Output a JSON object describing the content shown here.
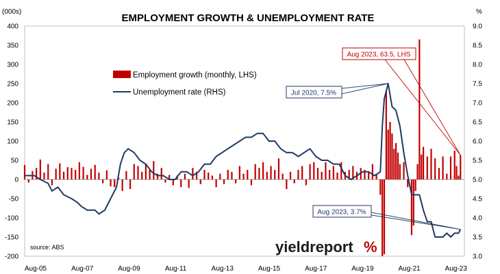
{
  "chart_data": {
    "type": "bar+line",
    "title": "EMPLOYMENT GROWTH & UNEMPLOYMENT RATE",
    "y_left_label": "(000s)",
    "y_right_label": "%",
    "y_left_range": [
      -200,
      400
    ],
    "y_right_range": [
      3.0,
      9.0
    ],
    "y_left_ticks": [
      "400",
      "350",
      "300",
      "250",
      "200",
      "150",
      "100",
      "50",
      "0",
      "-50",
      "-100",
      "-150",
      "-200"
    ],
    "y_right_ticks": [
      "9.0",
      "8.5",
      "8.0",
      "7.5",
      "7.0",
      "6.5",
      "6.0",
      "5.5",
      "5.0",
      "4.5",
      "4.0",
      "3.5",
      "3.0"
    ],
    "x_ticks": [
      "Aug-05",
      "Aug-07",
      "Aug-09",
      "Aug-11",
      "Aug-13",
      "Aug-15",
      "Aug-17",
      "Aug-19",
      "Aug-21",
      "Aug-23"
    ],
    "legend": {
      "bar_label": "Employment growth (monthly, LHS)",
      "line_label": "Unemployment rate (RHS)"
    },
    "source": "source: ABS",
    "logo_text": "yieldreport",
    "logo_symbol": "%",
    "series": [
      {
        "name": "Employment growth (monthly, LHS)",
        "kind": "bar",
        "unit": "000s",
        "color": "#c00000",
        "points": [
          [
            "2005-01",
            38
          ],
          [
            "2005-03",
            -8
          ],
          [
            "2005-05",
            22
          ],
          [
            "2005-07",
            30
          ],
          [
            "2005-09",
            52
          ],
          [
            "2005-11",
            18
          ],
          [
            "2006-01",
            40
          ],
          [
            "2006-03",
            -15
          ],
          [
            "2006-05",
            28
          ],
          [
            "2006-07",
            42
          ],
          [
            "2006-09",
            20
          ],
          [
            "2006-11",
            32
          ],
          [
            "2007-01",
            30
          ],
          [
            "2007-03",
            25
          ],
          [
            "2007-05",
            45
          ],
          [
            "2007-07",
            33
          ],
          [
            "2007-09",
            12
          ],
          [
            "2007-11",
            28
          ],
          [
            "2008-01",
            38
          ],
          [
            "2008-03",
            18
          ],
          [
            "2008-05",
            -10
          ],
          [
            "2008-07",
            24
          ],
          [
            "2008-09",
            -18
          ],
          [
            "2008-11",
            -20
          ],
          [
            "2009-01",
            5
          ],
          [
            "2009-03",
            -30
          ],
          [
            "2009-05",
            22
          ],
          [
            "2009-07",
            -25
          ],
          [
            "2009-09",
            40
          ],
          [
            "2009-11",
            35
          ],
          [
            "2010-01",
            20
          ],
          [
            "2010-03",
            42
          ],
          [
            "2010-05",
            25
          ],
          [
            "2010-07",
            48
          ],
          [
            "2010-09",
            15
          ],
          [
            "2010-11",
            30
          ],
          [
            "2011-01",
            -8
          ],
          [
            "2011-03",
            12
          ],
          [
            "2011-05",
            -15
          ],
          [
            "2011-07",
            10
          ],
          [
            "2011-09",
            -20
          ],
          [
            "2011-11",
            15
          ],
          [
            "2012-01",
            -22
          ],
          [
            "2012-03",
            30
          ],
          [
            "2012-05",
            20
          ],
          [
            "2012-07",
            -12
          ],
          [
            "2012-09",
            25
          ],
          [
            "2012-11",
            18
          ],
          [
            "2013-01",
            10
          ],
          [
            "2013-03",
            -20
          ],
          [
            "2013-05",
            15
          ],
          [
            "2013-07",
            -12
          ],
          [
            "2013-09",
            25
          ],
          [
            "2013-11",
            20
          ],
          [
            "2014-01",
            -10
          ],
          [
            "2014-03",
            35
          ],
          [
            "2014-05",
            15
          ],
          [
            "2014-07",
            25
          ],
          [
            "2014-09",
            -15
          ],
          [
            "2014-11",
            40
          ],
          [
            "2015-01",
            30
          ],
          [
            "2015-03",
            45
          ],
          [
            "2015-05",
            20
          ],
          [
            "2015-07",
            35
          ],
          [
            "2015-09",
            25
          ],
          [
            "2015-11",
            55
          ],
          [
            "2016-01",
            15
          ],
          [
            "2016-03",
            -25
          ],
          [
            "2016-05",
            20
          ],
          [
            "2016-07",
            -10
          ],
          [
            "2016-09",
            25
          ],
          [
            "2016-11",
            35
          ],
          [
            "2017-01",
            -15
          ],
          [
            "2017-03",
            40
          ],
          [
            "2017-05",
            45
          ],
          [
            "2017-07",
            30
          ],
          [
            "2017-09",
            20
          ],
          [
            "2017-11",
            45
          ],
          [
            "2018-01",
            25
          ],
          [
            "2018-03",
            35
          ],
          [
            "2018-05",
            18
          ],
          [
            "2018-07",
            45
          ],
          [
            "2018-09",
            20
          ],
          [
            "2018-11",
            25
          ],
          [
            "2019-01",
            35
          ],
          [
            "2019-03",
            20
          ],
          [
            "2019-05",
            30
          ],
          [
            "2019-07",
            25
          ],
          [
            "2019-09",
            20
          ],
          [
            "2019-11",
            40
          ],
          [
            "2020-01",
            15
          ],
          [
            "2020-03",
            -40
          ],
          [
            "2020-04",
            -200
          ],
          [
            "2020-05",
            -195
          ],
          [
            "2020-06",
            230
          ],
          [
            "2020-07",
            130
          ],
          [
            "2020-08",
            150
          ],
          [
            "2020-09",
            120
          ],
          [
            "2020-10",
            80
          ],
          [
            "2020-11",
            95
          ],
          [
            "2020-12",
            70
          ],
          [
            "2021-01",
            40
          ],
          [
            "2021-03",
            45
          ],
          [
            "2021-05",
            -20
          ],
          [
            "2021-07",
            -145
          ],
          [
            "2021-08",
            -120
          ],
          [
            "2021-09",
            -30
          ],
          [
            "2021-10",
            40
          ],
          [
            "2021-11",
            365
          ],
          [
            "2021-12",
            65
          ],
          [
            "2022-01",
            85
          ],
          [
            "2022-03",
            60
          ],
          [
            "2022-05",
            80
          ],
          [
            "2022-07",
            55
          ],
          [
            "2022-09",
            30
          ],
          [
            "2022-11",
            60
          ],
          [
            "2023-01",
            15
          ],
          [
            "2023-03",
            60
          ],
          [
            "2023-05",
            75
          ],
          [
            "2023-06",
            35
          ],
          [
            "2023-07",
            10
          ],
          [
            "2023-08",
            63.5
          ]
        ]
      },
      {
        "name": "Unemployment rate (RHS)",
        "kind": "line",
        "unit": "%",
        "color": "#1f3864",
        "points": [
          [
            "2005-01",
            5.1
          ],
          [
            "2005-06",
            5.1
          ],
          [
            "2005-09",
            5.0
          ],
          [
            "2006-01",
            4.9
          ],
          [
            "2006-03",
            4.7
          ],
          [
            "2006-06",
            4.8
          ],
          [
            "2006-09",
            4.6
          ],
          [
            "2007-01",
            4.5
          ],
          [
            "2007-04",
            4.4
          ],
          [
            "2007-06",
            4.3
          ],
          [
            "2007-09",
            4.2
          ],
          [
            "2008-01",
            4.2
          ],
          [
            "2008-03",
            4.1
          ],
          [
            "2008-06",
            4.2
          ],
          [
            "2008-09",
            4.5
          ],
          [
            "2008-12",
            4.8
          ],
          [
            "2009-02",
            5.4
          ],
          [
            "2009-04",
            5.7
          ],
          [
            "2009-06",
            5.8
          ],
          [
            "2009-09",
            5.7
          ],
          [
            "2009-12",
            5.5
          ],
          [
            "2010-03",
            5.4
          ],
          [
            "2010-06",
            5.2
          ],
          [
            "2010-09",
            5.1
          ],
          [
            "2010-12",
            5.1
          ],
          [
            "2011-03",
            5.0
          ],
          [
            "2011-06",
            5.0
          ],
          [
            "2011-09",
            5.2
          ],
          [
            "2011-12",
            5.2
          ],
          [
            "2012-03",
            5.1
          ],
          [
            "2012-06",
            5.2
          ],
          [
            "2012-09",
            5.4
          ],
          [
            "2012-12",
            5.4
          ],
          [
            "2013-03",
            5.6
          ],
          [
            "2013-06",
            5.7
          ],
          [
            "2013-09",
            5.8
          ],
          [
            "2013-12",
            5.9
          ],
          [
            "2014-03",
            6.0
          ],
          [
            "2014-06",
            6.1
          ],
          [
            "2014-09",
            6.1
          ],
          [
            "2014-12",
            6.2
          ],
          [
            "2015-03",
            6.2
          ],
          [
            "2015-06",
            6.0
          ],
          [
            "2015-09",
            6.0
          ],
          [
            "2015-12",
            5.8
          ],
          [
            "2016-03",
            5.7
          ],
          [
            "2016-06",
            5.7
          ],
          [
            "2016-09",
            5.6
          ],
          [
            "2016-12",
            5.7
          ],
          [
            "2017-03",
            5.8
          ],
          [
            "2017-06",
            5.6
          ],
          [
            "2017-09",
            5.5
          ],
          [
            "2017-12",
            5.5
          ],
          [
            "2018-03",
            5.4
          ],
          [
            "2018-06",
            5.4
          ],
          [
            "2018-09",
            5.1
          ],
          [
            "2018-12",
            5.0
          ],
          [
            "2019-03",
            5.1
          ],
          [
            "2019-06",
            5.2
          ],
          [
            "2019-09",
            5.2
          ],
          [
            "2019-12",
            5.1
          ],
          [
            "2020-03",
            5.2
          ],
          [
            "2020-04",
            6.4
          ],
          [
            "2020-05",
            7.1
          ],
          [
            "2020-07",
            7.5
          ],
          [
            "2020-09",
            6.9
          ],
          [
            "2020-11",
            6.8
          ],
          [
            "2021-01",
            6.4
          ],
          [
            "2021-03",
            5.7
          ],
          [
            "2021-05",
            5.1
          ],
          [
            "2021-07",
            4.6
          ],
          [
            "2021-09",
            4.6
          ],
          [
            "2021-11",
            4.6
          ],
          [
            "2022-01",
            4.2
          ],
          [
            "2022-03",
            3.9
          ],
          [
            "2022-05",
            3.9
          ],
          [
            "2022-07",
            3.5
          ],
          [
            "2022-09",
            3.5
          ],
          [
            "2022-11",
            3.5
          ],
          [
            "2023-01",
            3.6
          ],
          [
            "2023-03",
            3.5
          ],
          [
            "2023-05",
            3.6
          ],
          [
            "2023-07",
            3.6
          ],
          [
            "2023-08",
            3.7
          ]
        ]
      }
    ],
    "annotations": [
      {
        "text": "Jul 2020, 7.5%",
        "target": [
          "2020-07",
          7.5
        ],
        "axis": "right",
        "color": "#1f3864"
      },
      {
        "text": "Aug 2023, 63.5, LHS",
        "target": [
          "2023-08",
          63.5
        ],
        "axis": "left",
        "color": "#c00000"
      },
      {
        "text": "Aug 2023, 3.7%",
        "target": [
          "2023-08",
          3.7
        ],
        "axis": "right",
        "color": "#1f3864"
      }
    ]
  }
}
